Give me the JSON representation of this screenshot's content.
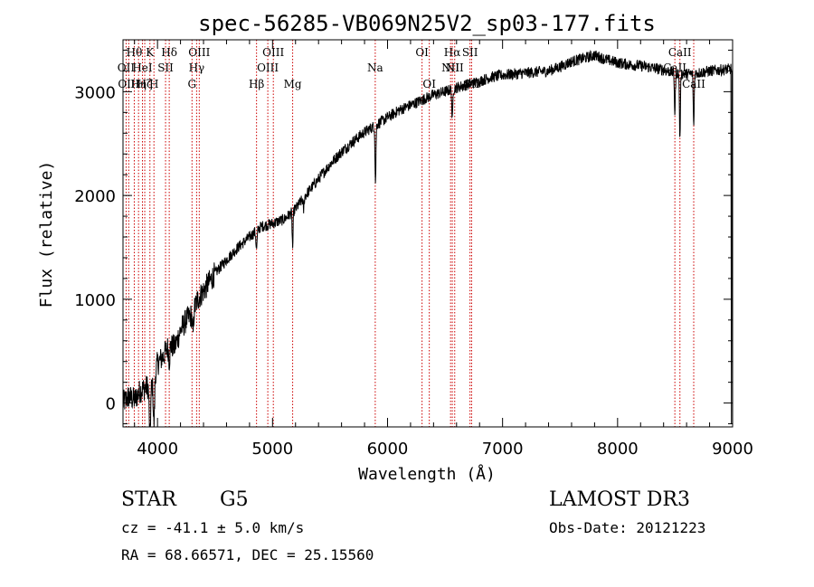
{
  "chart_data": {
    "type": "line",
    "title": "spec-56285-VB069N25V2_sp03-177.fits",
    "xlabel": "Wavelength (Å)",
    "ylabel": "Flux (relative)",
    "xlim": [
      3700,
      9000
    ],
    "ylim": [
      -230,
      3500
    ],
    "x_ticks": [
      4000,
      5000,
      6000,
      7000,
      8000,
      9000
    ],
    "x_tick_labels": [
      "4000",
      "5000",
      "6000",
      "7000",
      "8000",
      "9000"
    ],
    "y_ticks": [
      0,
      1000,
      2000,
      3000
    ],
    "y_tick_labels": [
      "0",
      "1000",
      "2000",
      "3000"
    ],
    "continuum": [
      [
        3700,
        0
      ],
      [
        3750,
        60
      ],
      [
        3800,
        30
      ],
      [
        3850,
        120
      ],
      [
        3900,
        150
      ],
      [
        3950,
        180
      ],
      [
        4000,
        380
      ],
      [
        4050,
        450
      ],
      [
        4100,
        560
      ],
      [
        4150,
        540
      ],
      [
        4200,
        700
      ],
      [
        4250,
        800
      ],
      [
        4300,
        850
      ],
      [
        4350,
        1000
      ],
      [
        4400,
        1080
      ],
      [
        4500,
        1250
      ],
      [
        4600,
        1380
      ],
      [
        4700,
        1500
      ],
      [
        4800,
        1600
      ],
      [
        4900,
        1700
      ],
      [
        5000,
        1730
      ],
      [
        5100,
        1770
      ],
      [
        5200,
        1870
      ],
      [
        5300,
        2020
      ],
      [
        5400,
        2160
      ],
      [
        5500,
        2300
      ],
      [
        5600,
        2420
      ],
      [
        5700,
        2520
      ],
      [
        5800,
        2610
      ],
      [
        5900,
        2680
      ],
      [
        6000,
        2750
      ],
      [
        6100,
        2820
      ],
      [
        6200,
        2870
      ],
      [
        6300,
        2920
      ],
      [
        6400,
        2970
      ],
      [
        6500,
        3000
      ],
      [
        6600,
        3040
      ],
      [
        6700,
        3070
      ],
      [
        6800,
        3100
      ],
      [
        6900,
        3140
      ],
      [
        7000,
        3160
      ],
      [
        7100,
        3170
      ],
      [
        7200,
        3180
      ],
      [
        7300,
        3190
      ],
      [
        7400,
        3200
      ],
      [
        7500,
        3240
      ],
      [
        7600,
        3290
      ],
      [
        7700,
        3320
      ],
      [
        7800,
        3350
      ],
      [
        7900,
        3310
      ],
      [
        8000,
        3280
      ],
      [
        8100,
        3260
      ],
      [
        8200,
        3250
      ],
      [
        8300,
        3230
      ],
      [
        8400,
        3210
      ],
      [
        8500,
        3180
      ],
      [
        8600,
        3170
      ],
      [
        8700,
        3180
      ],
      [
        8800,
        3200
      ],
      [
        8900,
        3210
      ],
      [
        9000,
        3220
      ]
    ],
    "absorption": [
      {
        "center": 3934,
        "depth": 500,
        "width": 6
      },
      {
        "center": 3969,
        "depth": 450,
        "width": 6
      },
      {
        "center": 4102,
        "depth": 150,
        "width": 5
      },
      {
        "center": 4308,
        "depth": 220,
        "width": 5
      },
      {
        "center": 4861,
        "depth": 180,
        "width": 5
      },
      {
        "center": 5175,
        "depth": 350,
        "width": 4
      },
      {
        "center": 5270,
        "depth": 120,
        "width": 4
      },
      {
        "center": 5895,
        "depth": 550,
        "width": 4
      },
      {
        "center": 6563,
        "depth": 320,
        "width": 4
      },
      {
        "center": 8498,
        "depth": 400,
        "width": 4
      },
      {
        "center": 8542,
        "depth": 650,
        "width": 4
      },
      {
        "center": 8662,
        "depth": 520,
        "width": 4
      }
    ],
    "noise_amplitude": 55,
    "line_markers": [
      {
        "wavelength": 3727,
        "label": "OII",
        "row": 2
      },
      {
        "wavelength": 3750,
        "label": "OIII",
        "row": 3
      },
      {
        "wavelength": 3798,
        "label": "Hθ",
        "row": 1
      },
      {
        "wavelength": 3835,
        "label": "Hη",
        "row": 3
      },
      {
        "wavelength": 3869,
        "label": "HeI",
        "row": 2
      },
      {
        "wavelength": 3889,
        "label": "Hζ",
        "row": 3
      },
      {
        "wavelength": 3934,
        "label": "K",
        "row": 1
      },
      {
        "wavelength": 3969,
        "label": "H",
        "row": 3
      },
      {
        "wavelength": 4070,
        "label": "SII",
        "row": 2
      },
      {
        "wavelength": 4102,
        "label": "Hδ",
        "row": 1
      },
      {
        "wavelength": 4300,
        "label": "G",
        "row": 3
      },
      {
        "wavelength": 4340,
        "label": "Hγ",
        "row": 2
      },
      {
        "wavelength": 4363,
        "label": "OIII",
        "row": 1
      },
      {
        "wavelength": 4861,
        "label": "Hβ",
        "row": 3
      },
      {
        "wavelength": 4959,
        "label": "OIII",
        "row": 2
      },
      {
        "wavelength": 5007,
        "label": "OIII",
        "row": 1
      },
      {
        "wavelength": 5175,
        "label": "Mg",
        "row": 3
      },
      {
        "wavelength": 5893,
        "label": "Na",
        "row": 2
      },
      {
        "wavelength": 6300,
        "label": "OI",
        "row": 1
      },
      {
        "wavelength": 6363,
        "label": "OI",
        "row": 3
      },
      {
        "wavelength": 6548,
        "label": "NII",
        "row": 2
      },
      {
        "wavelength": 6563,
        "label": "Hα",
        "row": 1
      },
      {
        "wavelength": 6584,
        "label": "NII",
        "row": 2
      },
      {
        "wavelength": 6717,
        "label": "SII",
        "row": 1
      },
      {
        "wavelength": 6731,
        "label": "SII",
        "row": 3
      },
      {
        "wavelength": 8498,
        "label": "CaII",
        "row": 2
      },
      {
        "wavelength": 8542,
        "label": "CaII",
        "row": 1
      },
      {
        "wavelength": 8662,
        "label": "CaII",
        "row": 3
      }
    ]
  },
  "info": {
    "object_class": "STAR",
    "subclass": "G5",
    "survey": "LAMOST DR3",
    "redshift": "cz = -41.1 ± 5.0 km/s",
    "obs_date": "Obs-Date: 20121223",
    "coords": "RA =  68.66571, DEC =  25.15560"
  },
  "colors": {
    "spectrum": "#000000",
    "marker": "#cc0000",
    "axis": "#000000"
  }
}
